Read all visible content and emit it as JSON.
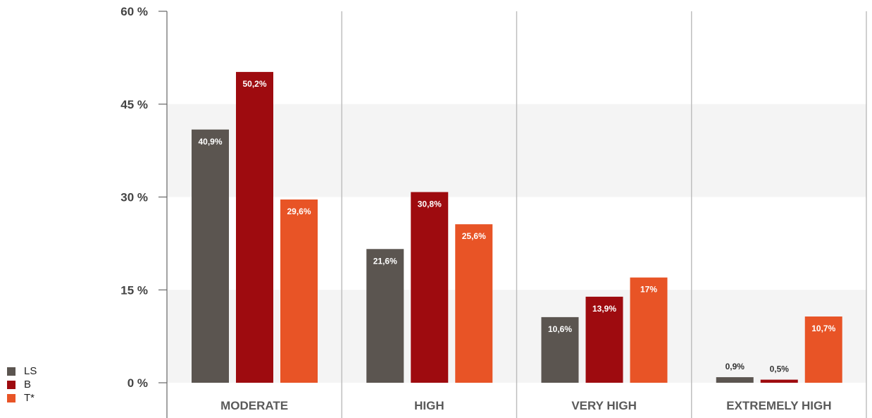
{
  "chart_data": {
    "type": "bar",
    "categories": [
      "MODERATE",
      "HIGH",
      "VERY HIGH",
      "EXTREMELY HIGH"
    ],
    "series": [
      {
        "name": "LS",
        "color": "#5b5550",
        "values": [
          40.9,
          21.6,
          10.6,
          0.9
        ],
        "labels": [
          "40,9%",
          "21,6%",
          "10,6%",
          "0,9%"
        ]
      },
      {
        "name": "B",
        "color": "#9e0b0f",
        "values": [
          50.2,
          30.8,
          13.9,
          0.5
        ],
        "labels": [
          "50,2%",
          "30,8%",
          "13,9%",
          "0,5%"
        ]
      },
      {
        "name": "T*",
        "color": "#e85426",
        "values": [
          29.6,
          25.6,
          17,
          10.7
        ],
        "labels": [
          "29,6%",
          "25,6%",
          "17%",
          "10,7%"
        ]
      }
    ],
    "ylim": [
      0,
      60
    ],
    "yticks": [
      0,
      15,
      30,
      45,
      60
    ],
    "ytick_labels": [
      "0 %",
      "15 %",
      "30 %",
      "45 %",
      "60 %"
    ],
    "title": "",
    "xlabel": "",
    "ylabel": "",
    "legend_position": "bottom-left",
    "grid": "alternating horizontal bands",
    "band_color": "#f4f4f4",
    "separator_color": "#bbbbbb"
  }
}
